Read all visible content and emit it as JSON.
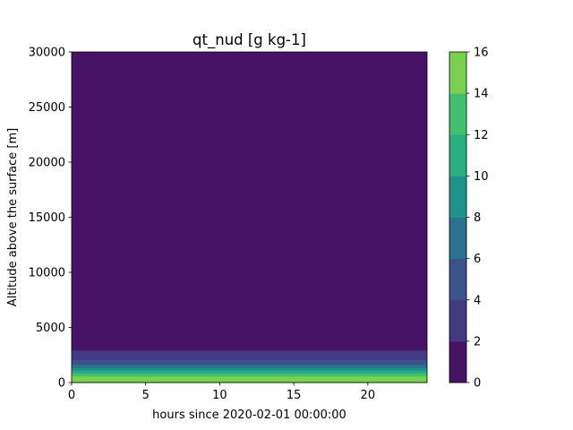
{
  "chart_data": {
    "type": "contourf",
    "title": "qt_nud [g kg-1]",
    "xlabel": "hours since 2020-02-01 00:00:00",
    "ylabel": "Altitude above the surface [m]",
    "xlim": [
      0,
      24
    ],
    "ylim": [
      0,
      30000
    ],
    "x_ticks": [
      0,
      5,
      10,
      15,
      20
    ],
    "y_ticks": [
      0,
      5000,
      10000,
      15000,
      20000,
      25000,
      30000
    ],
    "grid": false,
    "colorbar": {
      "levels": [
        0,
        2,
        4,
        6,
        8,
        10,
        12,
        14,
        16
      ],
      "ticks": [
        0,
        2,
        4,
        6,
        8,
        10,
        12,
        14,
        16
      ],
      "colors": [
        "#471365",
        "#443a83",
        "#3b528b",
        "#2c728e",
        "#21918c",
        "#28ae80",
        "#44bf70",
        "#7ad151",
        "#d2e21b"
      ]
    },
    "field_description": "values constant in time; decrease with altitude",
    "level_bands": [
      {
        "range": [
          14,
          16
        ],
        "z_from": 0,
        "z_to": 600
      },
      {
        "range": [
          12,
          14
        ],
        "z_from": 600,
        "z_to": 850
      },
      {
        "range": [
          10,
          12
        ],
        "z_from": 850,
        "z_to": 1100
      },
      {
        "range": [
          8,
          10
        ],
        "z_from": 1100,
        "z_to": 1350
      },
      {
        "range": [
          6,
          8
        ],
        "z_from": 1350,
        "z_to": 1650
      },
      {
        "range": [
          4,
          6
        ],
        "z_from": 1650,
        "z_to": 2100
      },
      {
        "range": [
          2,
          4
        ],
        "z_from": 2100,
        "z_to": 2950
      },
      {
        "range": [
          0,
          2
        ],
        "z_from": 2950,
        "z_to": 30000
      }
    ]
  }
}
